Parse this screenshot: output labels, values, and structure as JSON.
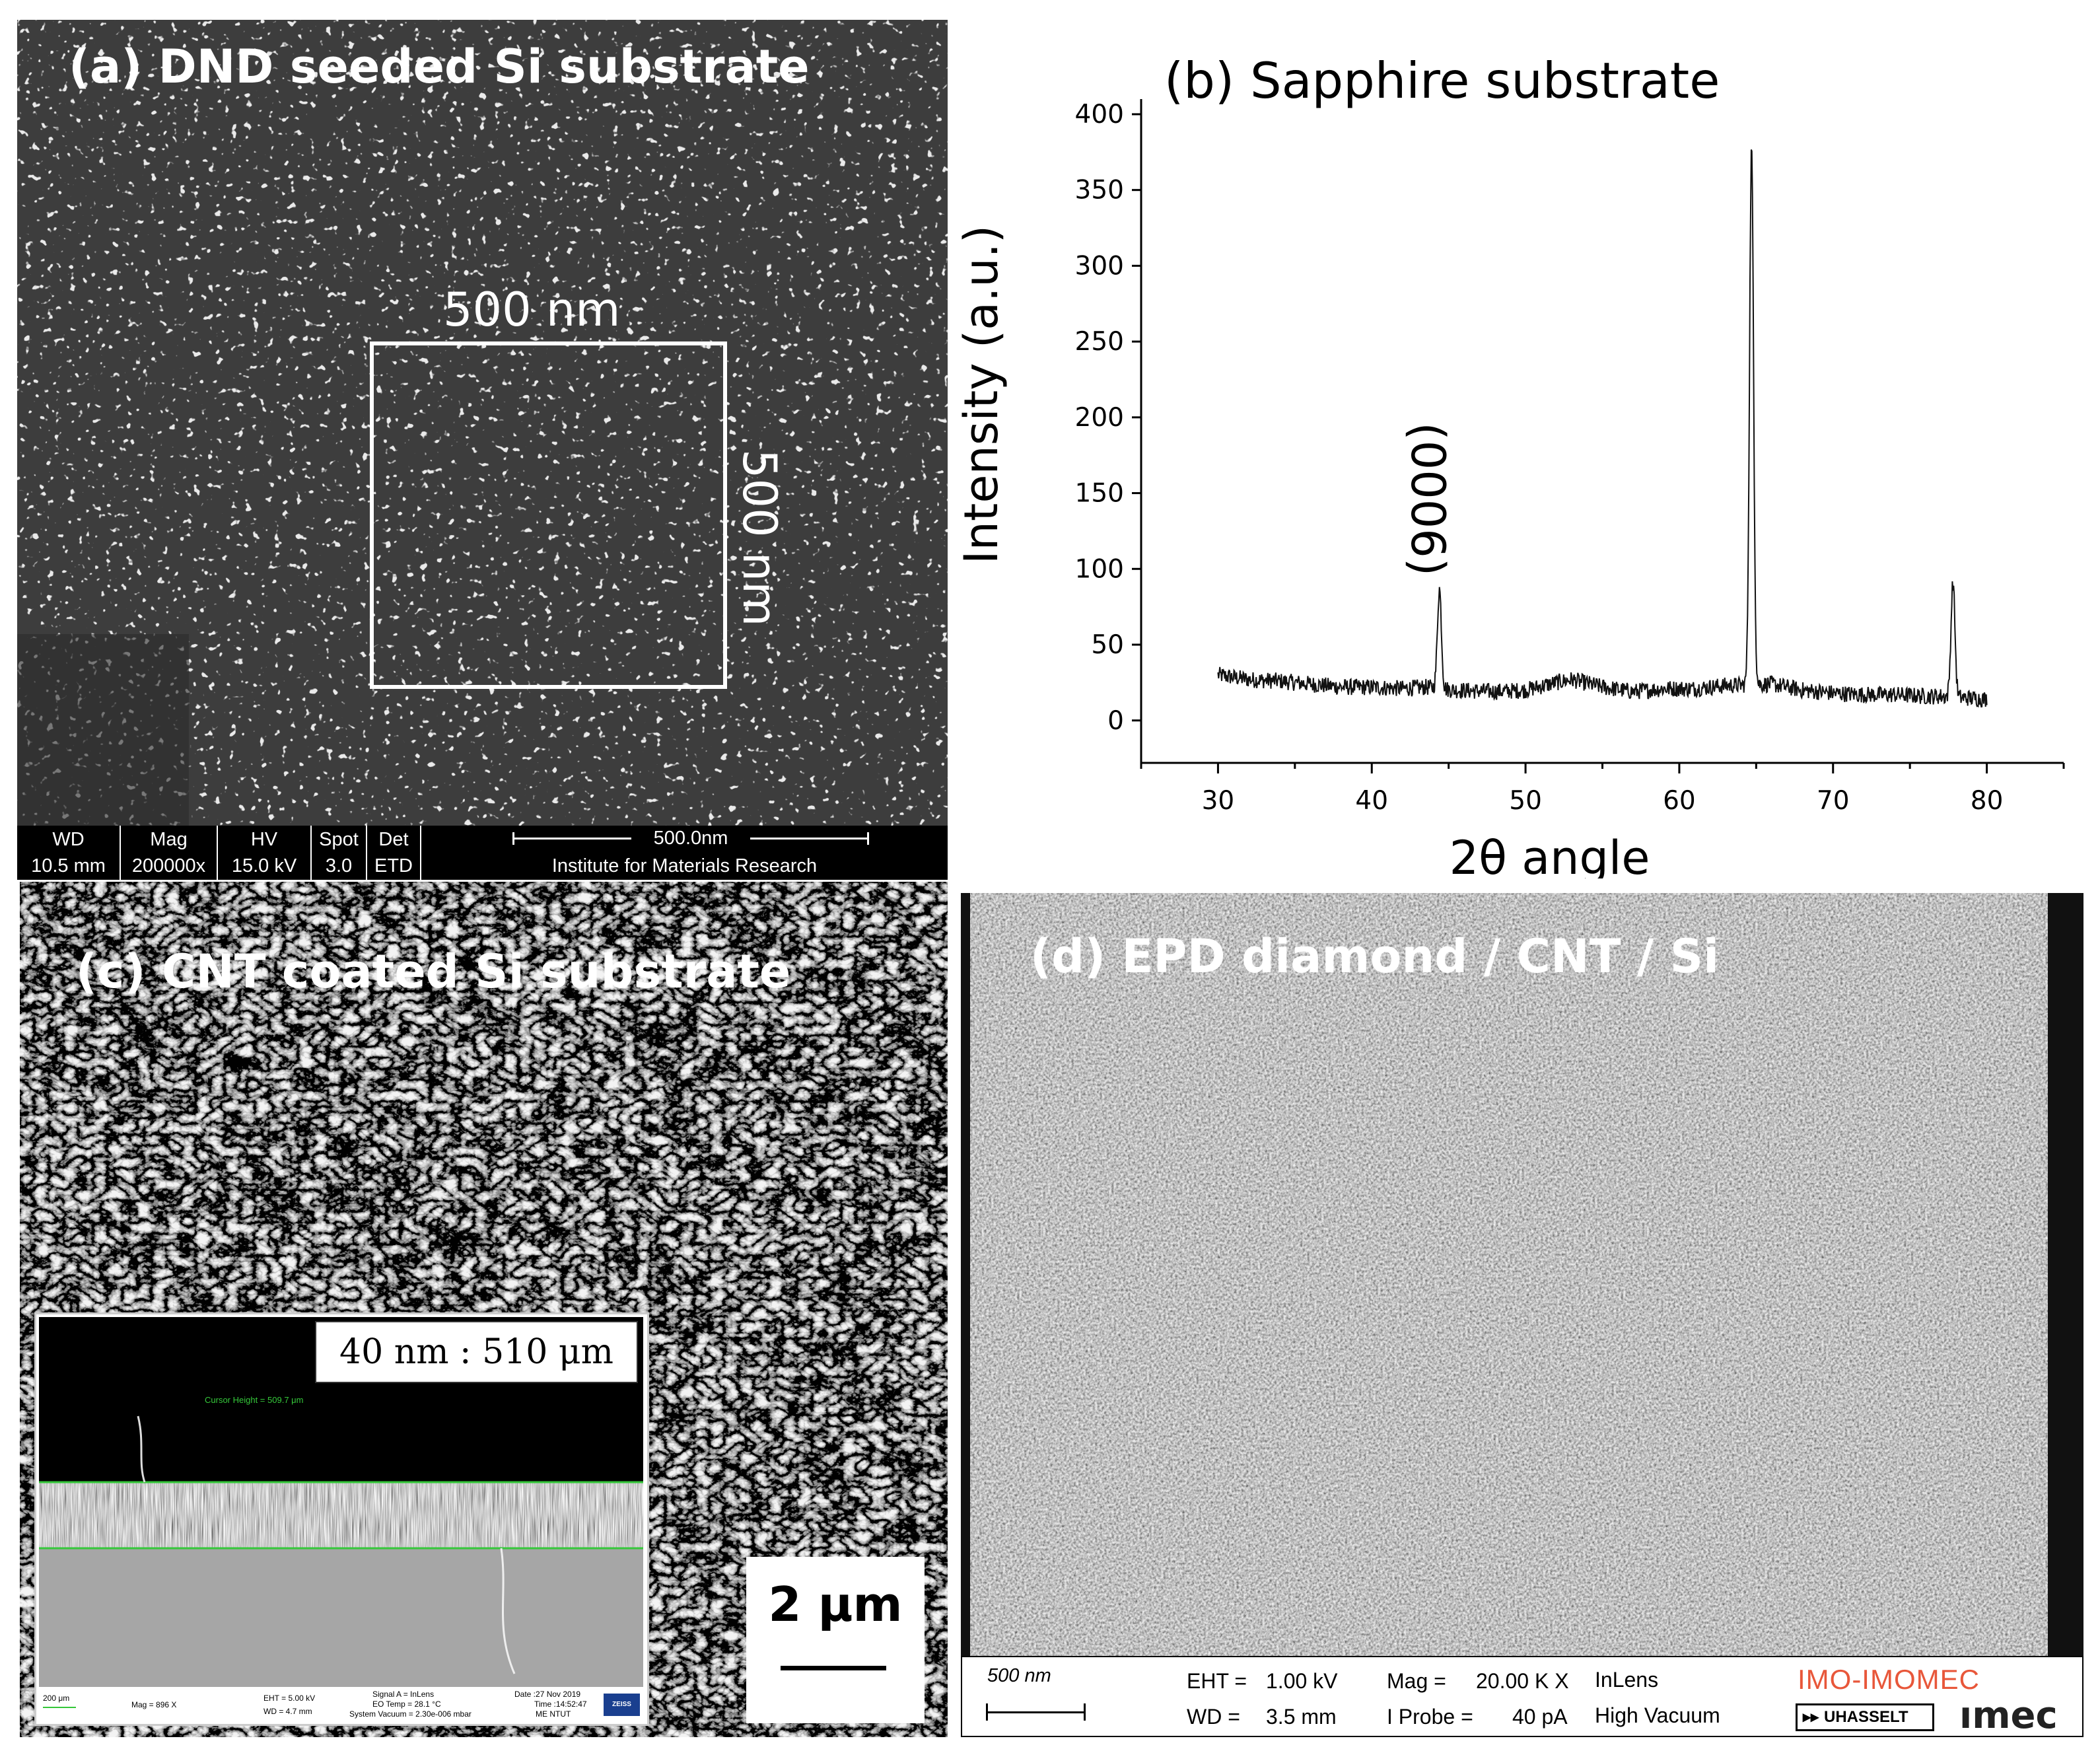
{
  "panel_a": {
    "title": "(a) DND seeded Si substrate",
    "box_label_top": "500 nm",
    "box_label_right": "500 nm",
    "info_bar": {
      "headers": [
        "WD",
        "Mag",
        "HV",
        "Spot",
        "Det"
      ],
      "values": [
        "10.5 mm",
        "200000x",
        "15.0 kV",
        "3.0",
        "ETD"
      ],
      "scale_label": "500.0nm",
      "institute": "Institute for Materials Research"
    }
  },
  "panel_b": {
    "title": "(b) Sapphire substrate",
    "peak_label": "(0006)"
  },
  "panel_c": {
    "title": "(c) CNT coated Si substrate",
    "inset_ratio": "40 nm : 510 μm",
    "scale_label": "2 μm",
    "inset_bar": {
      "scale": "200 μm",
      "mag": "Mag =   896 X",
      "eht": "EHT =  5.00 kV",
      "wd": "WD =  4.7 mm",
      "signal": "Signal A = InLens",
      "eo_temp": "EO Temp = 28.1 °C",
      "vacuum": "System Vacuum = 2.30e-006 mbar",
      "date": "Date :27 Nov 2019",
      "time": "Time :14:52:47",
      "org": "ME NTUT",
      "brand": "ZEISS",
      "cursor": "Cursor Height = 509.7 μm"
    }
  },
  "panel_d": {
    "title": "(d) EPD diamond / CNT / Si",
    "info_bar": {
      "scale_label": "500 nm",
      "eht_label": "EHT =",
      "eht_value": "1.00 kV",
      "wd_label": "WD =",
      "wd_value": "3.5 mm",
      "mag_label": "Mag =",
      "mag_value": "20.00 K X",
      "probe_label": "I Probe =",
      "probe_value": "40 pA",
      "detector": "InLens",
      "vacuum": "High Vacuum",
      "logo_top": "IMO-IMOMEC",
      "logo_uhasselt": "UHASSELT",
      "logo_imec": "ımec"
    }
  },
  "chart_data": {
    "type": "line",
    "title": "(b) Sapphire substrate",
    "xlabel": "2θ angle",
    "ylabel": "Intensity (a.u.)",
    "xlim": [
      25,
      85
    ],
    "ylim": [
      -28,
      410
    ],
    "xticks": [
      30,
      40,
      50,
      60,
      70,
      80
    ],
    "yticks": [
      0,
      50,
      100,
      150,
      200,
      250,
      300,
      350,
      400
    ],
    "grid": false,
    "series": [
      {
        "baseline": [
          [
            30,
            30
          ],
          [
            32,
            27
          ],
          [
            34,
            26
          ],
          [
            36,
            24
          ],
          [
            38,
            22
          ],
          [
            40,
            22
          ],
          [
            42,
            21
          ],
          [
            43.5,
            22
          ],
          [
            45.5,
            20
          ],
          [
            48,
            19
          ],
          [
            50,
            20
          ],
          [
            52,
            25
          ],
          [
            53,
            27
          ],
          [
            55,
            22
          ],
          [
            57,
            19
          ],
          [
            59,
            21
          ],
          [
            61,
            21
          ],
          [
            63,
            23
          ],
          [
            66,
            24
          ],
          [
            68,
            20
          ],
          [
            70,
            18
          ],
          [
            72,
            17
          ],
          [
            74,
            17
          ],
          [
            76,
            16
          ],
          [
            77,
            16
          ],
          [
            78.5,
            15
          ],
          [
            80,
            14
          ]
        ],
        "peaks": [
          {
            "x": 44.4,
            "y": 87,
            "label": "(0006)"
          },
          {
            "x": 64.7,
            "y": 378
          },
          {
            "x": 77.8,
            "y": 91
          }
        ]
      }
    ],
    "annotations": [
      "(0006)"
    ]
  }
}
